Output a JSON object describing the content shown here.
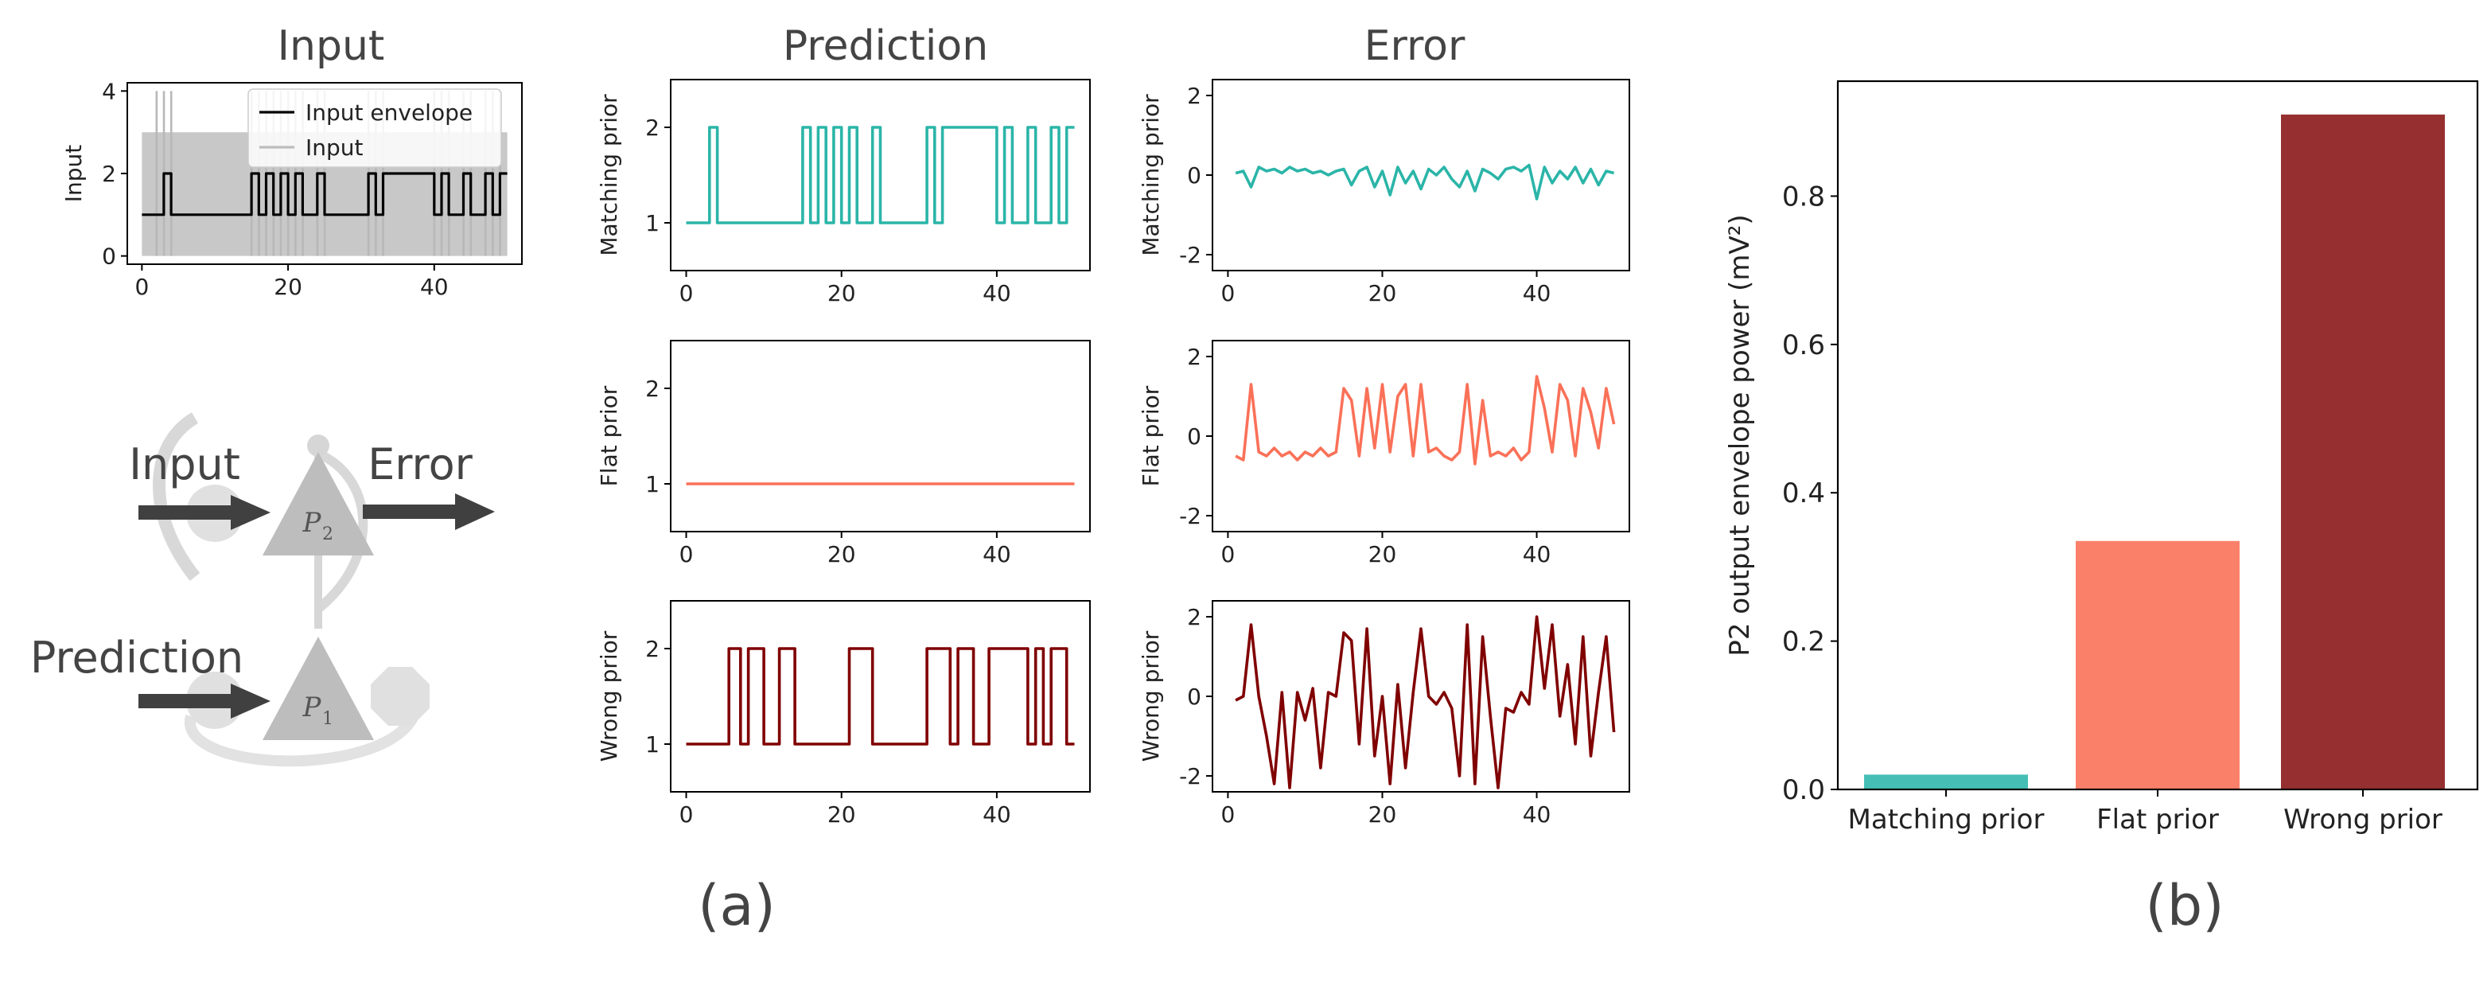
{
  "panel_a_label": "(a)",
  "panel_b_label": "(b)",
  "column_titles": {
    "input": "Input",
    "prediction": "Prediction",
    "error": "Error"
  },
  "diagram": {
    "input_label": "Input",
    "error_label": "Error",
    "prediction_label": "Prediction",
    "cell_top": {
      "letter": "P",
      "subscript": "2"
    },
    "cell_bottom": {
      "letter": "P",
      "subscript": "1"
    }
  },
  "colors": {
    "matching": "#2bb5a8",
    "flat": "#fa7158",
    "wrong": "#800000",
    "envelope": "#000000",
    "input_fill": "#c8c8c8",
    "bar_matching": "#45bfb5",
    "bar_flat": "#fa806a",
    "bar_wrong": "#963030"
  },
  "chart_data": [
    {
      "id": "input",
      "type": "line",
      "ylabel": "Input",
      "xlim": [
        -2,
        52
      ],
      "ylim": [
        -0.2,
        4.2
      ],
      "xticks": [
        0,
        20,
        40
      ],
      "yticks": [
        0,
        2,
        4
      ],
      "legend": {
        "position": "top-right",
        "entries": [
          "Input envelope",
          "Input"
        ]
      },
      "series": [
        {
          "name": "Input envelope",
          "x": [
            0,
            3,
            3,
            4,
            4,
            15,
            15,
            16,
            16,
            17,
            17,
            18,
            18,
            19,
            19,
            20,
            20,
            21,
            21,
            22,
            22,
            24,
            24,
            25,
            25,
            31,
            31,
            32,
            32,
            33,
            33,
            40,
            40,
            41,
            41,
            42,
            42,
            44,
            44,
            45,
            45,
            47,
            47,
            48,
            48,
            49,
            49,
            50
          ],
          "y": [
            1,
            1,
            2,
            2,
            1,
            1,
            2,
            2,
            1,
            1,
            2,
            2,
            1,
            1,
            2,
            2,
            1,
            1,
            2,
            2,
            1,
            1,
            2,
            2,
            1,
            1,
            2,
            2,
            1,
            1,
            2,
            2,
            1,
            1,
            2,
            2,
            1,
            1,
            2,
            2,
            1,
            1,
            2,
            2,
            1,
            1,
            2,
            2
          ]
        }
      ],
      "input_band": {
        "name": "Input",
        "base_low": 0,
        "base_high": 3,
        "spikes_high": 4,
        "spike_x": [
          2,
          3,
          4,
          15,
          16,
          17,
          18,
          19,
          20,
          21,
          22,
          24,
          25,
          31,
          32,
          33,
          40,
          41,
          42,
          44,
          45,
          47,
          48,
          49
        ]
      }
    },
    {
      "id": "pred-matching",
      "type": "line",
      "ylabel": "Matching prior",
      "xlim": [
        -2,
        52
      ],
      "ylim": [
        0.5,
        2.5
      ],
      "xticks": [
        0,
        20,
        40
      ],
      "yticks": [
        1,
        2
      ],
      "series": [
        {
          "name": "",
          "x": [
            0,
            3,
            3,
            4,
            4,
            15,
            15,
            16,
            16,
            17,
            17,
            18,
            18,
            19,
            19,
            20,
            20,
            21,
            21,
            22,
            22,
            24,
            24,
            25,
            25,
            31,
            31,
            32,
            32,
            33,
            33,
            40,
            40,
            41,
            41,
            42,
            42,
            44,
            44,
            45,
            45,
            47,
            47,
            48,
            48,
            49,
            49,
            50
          ],
          "y": [
            1,
            1,
            2,
            2,
            1,
            1,
            2,
            2,
            1,
            1,
            2,
            2,
            1,
            1,
            2,
            2,
            1,
            1,
            2,
            2,
            1,
            1,
            2,
            2,
            1,
            1,
            2,
            2,
            1,
            1,
            2,
            2,
            1,
            1,
            2,
            2,
            1,
            1,
            2,
            2,
            1,
            1,
            2,
            2,
            1,
            1,
            2,
            2
          ]
        }
      ]
    },
    {
      "id": "pred-flat",
      "type": "line",
      "ylabel": "Flat prior",
      "xlim": [
        -2,
        52
      ],
      "ylim": [
        0.5,
        2.5
      ],
      "xticks": [
        0,
        20,
        40
      ],
      "yticks": [
        1,
        2
      ],
      "series": [
        {
          "name": "",
          "x": [
            0,
            50
          ],
          "y": [
            1,
            1
          ]
        }
      ]
    },
    {
      "id": "pred-wrong",
      "type": "line",
      "ylabel": "Wrong prior",
      "xlim": [
        -2,
        52
      ],
      "ylim": [
        0.5,
        2.5
      ],
      "xticks": [
        0,
        20,
        40
      ],
      "yticks": [
        1,
        2
      ],
      "series": [
        {
          "name": "",
          "x": [
            0,
            5.5,
            5.5,
            7,
            7,
            8,
            8,
            10,
            10,
            12,
            12,
            14,
            14,
            21,
            21,
            24,
            24,
            31,
            31,
            34,
            34,
            35,
            35,
            37,
            37,
            39,
            39,
            44,
            44,
            45,
            45,
            46,
            46,
            47,
            47,
            49,
            49,
            50
          ],
          "y": [
            1,
            1,
            2,
            2,
            1,
            1,
            2,
            2,
            1,
            1,
            2,
            2,
            1,
            1,
            2,
            2,
            1,
            1,
            2,
            2,
            1,
            1,
            2,
            2,
            1,
            1,
            2,
            2,
            1,
            1,
            2,
            2,
            1,
            1,
            2,
            2,
            1,
            1
          ]
        }
      ]
    },
    {
      "id": "err-matching",
      "type": "line",
      "ylabel": "Matching prior",
      "xlim": [
        -2,
        52
      ],
      "ylim": [
        -2.4,
        2.4
      ],
      "xticks": [
        0,
        20,
        40
      ],
      "yticks": [
        -2,
        0,
        2
      ],
      "series": [
        {
          "name": "",
          "x": [
            1,
            2,
            3,
            4,
            5,
            6,
            7,
            8,
            9,
            10,
            11,
            12,
            13,
            14,
            15,
            16,
            17,
            18,
            19,
            20,
            21,
            22,
            23,
            24,
            25,
            26,
            27,
            28,
            29,
            30,
            31,
            32,
            33,
            34,
            35,
            36,
            37,
            38,
            39,
            40,
            41,
            42,
            43,
            44,
            45,
            46,
            47,
            48,
            49,
            50
          ],
          "y": [
            0.05,
            0.1,
            -0.3,
            0.2,
            0.1,
            0.15,
            0.05,
            0.2,
            0.1,
            0.15,
            0.05,
            0.1,
            0.0,
            0.1,
            0.15,
            -0.25,
            0.1,
            0.2,
            -0.3,
            0.1,
            -0.5,
            0.2,
            -0.2,
            0.1,
            -0.35,
            0.15,
            0.0,
            0.2,
            -0.1,
            -0.3,
            0.1,
            -0.4,
            0.15,
            0.05,
            -0.1,
            0.15,
            0.2,
            0.1,
            0.25,
            -0.6,
            0.2,
            -0.2,
            0.1,
            -0.1,
            0.2,
            -0.2,
            0.15,
            -0.25,
            0.1,
            0.05
          ]
        }
      ]
    },
    {
      "id": "err-flat",
      "type": "line",
      "ylabel": "Flat prior",
      "xlim": [
        -2,
        52
      ],
      "ylim": [
        -2.4,
        2.4
      ],
      "xticks": [
        0,
        20,
        40
      ],
      "yticks": [
        -2,
        0,
        2
      ],
      "series": [
        {
          "name": "",
          "x": [
            1,
            2,
            3,
            4,
            5,
            6,
            7,
            8,
            9,
            10,
            11,
            12,
            13,
            14,
            15,
            16,
            17,
            18,
            19,
            20,
            21,
            22,
            23,
            24,
            25,
            26,
            27,
            28,
            29,
            30,
            31,
            32,
            33,
            34,
            35,
            36,
            37,
            38,
            39,
            40,
            41,
            42,
            43,
            44,
            45,
            46,
            47,
            48,
            49,
            50
          ],
          "y": [
            -0.5,
            -0.6,
            1.3,
            -0.4,
            -0.5,
            -0.3,
            -0.5,
            -0.4,
            -0.6,
            -0.4,
            -0.5,
            -0.3,
            -0.5,
            -0.4,
            1.2,
            0.9,
            -0.5,
            1.2,
            -0.3,
            1.3,
            -0.4,
            1.0,
            1.3,
            -0.5,
            1.3,
            -0.4,
            -0.3,
            -0.5,
            -0.6,
            -0.4,
            1.3,
            -0.7,
            0.9,
            -0.5,
            -0.4,
            -0.5,
            -0.3,
            -0.6,
            -0.4,
            1.5,
            0.7,
            -0.4,
            1.3,
            0.9,
            -0.5,
            1.2,
            0.6,
            -0.3,
            1.2,
            0.3
          ]
        }
      ]
    },
    {
      "id": "err-wrong",
      "type": "line",
      "ylabel": "Wrong prior",
      "xlim": [
        -2,
        52
      ],
      "ylim": [
        -2.4,
        2.4
      ],
      "xticks": [
        0,
        20,
        40
      ],
      "yticks": [
        -2,
        0,
        2
      ],
      "series": [
        {
          "name": "",
          "x": [
            1,
            2,
            3,
            4,
            5,
            6,
            7,
            8,
            9,
            10,
            11,
            12,
            13,
            14,
            15,
            16,
            17,
            18,
            19,
            20,
            21,
            22,
            23,
            24,
            25,
            26,
            27,
            28,
            29,
            30,
            31,
            32,
            33,
            34,
            35,
            36,
            37,
            38,
            39,
            40,
            41,
            42,
            43,
            44,
            45,
            46,
            47,
            48,
            49,
            50
          ],
          "y": [
            -0.1,
            0.0,
            1.8,
            0.0,
            -1.0,
            -2.2,
            0.1,
            -2.3,
            0.1,
            -0.6,
            0.2,
            -1.8,
            0.1,
            0.0,
            1.6,
            1.4,
            -1.2,
            1.7,
            -1.5,
            0.0,
            -2.2,
            0.3,
            -1.8,
            0.1,
            1.7,
            0.0,
            -0.2,
            0.1,
            -0.3,
            -2.0,
            1.8,
            -2.2,
            1.5,
            -0.5,
            -2.3,
            -0.3,
            -0.4,
            0.1,
            -0.2,
            2.0,
            0.2,
            1.8,
            -0.5,
            0.8,
            -1.2,
            1.5,
            -1.5,
            0.1,
            1.5,
            -0.9
          ]
        }
      ]
    },
    {
      "id": "power-bars",
      "type": "bar",
      "ylabel": "P2 output envelope power (mV²)",
      "categories": [
        "Matching prior",
        "Flat prior",
        "Wrong prior"
      ],
      "values": [
        0.02,
        0.335,
        0.91
      ],
      "ylim": [
        0,
        0.955
      ],
      "yticks": [
        0.0,
        0.2,
        0.4,
        0.6,
        0.8
      ],
      "ytick_labels": [
        "0.0",
        "0.2",
        "0.4",
        "0.6",
        "0.8"
      ]
    }
  ]
}
